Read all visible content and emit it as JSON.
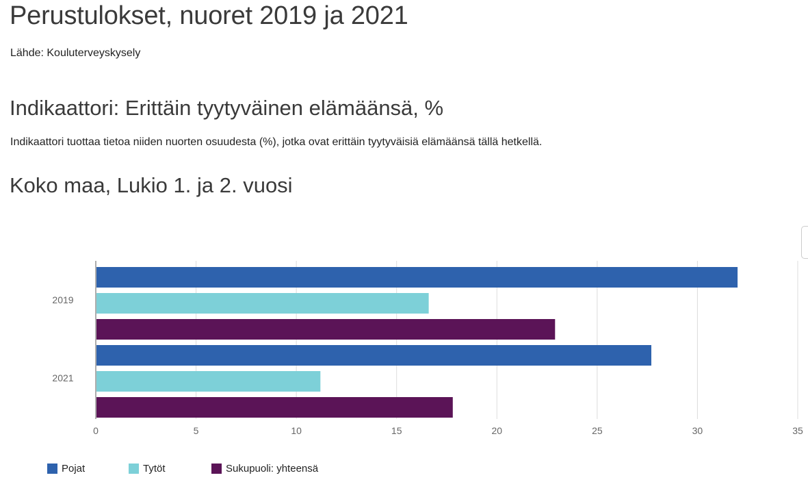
{
  "page": {
    "title": "Perustulokset, nuoret 2019 ja 2021",
    "source": "Lähde: Kouluterveyskysely",
    "indicator_title": "Indikaattori: Erittäin tyytyväinen elämäänsä, %",
    "indicator_description": "Indikaattori tuottaa tietoa niiden nuorten osuudesta (%), jotka ovat erittäin tyytyväisiä elämäänsä tällä hetkellä.",
    "chart_title": "Koko maa, Lukio 1. ja 2. vuosi"
  },
  "chart_data": {
    "type": "bar",
    "orientation": "horizontal",
    "title": "Koko maa, Lukio 1. ja 2. vuosi",
    "xlabel": "",
    "ylabel": "",
    "categories": [
      "2019",
      "2021"
    ],
    "series": [
      {
        "name": "Pojat",
        "color": "#2e62ad",
        "values": [
          32.0,
          27.7
        ]
      },
      {
        "name": "Tytöt",
        "color": "#7dd0d8",
        "values": [
          16.6,
          11.2
        ]
      },
      {
        "name": "Sukupuoli: yhteensä",
        "color": "#5b1457",
        "values": [
          22.9,
          17.8
        ]
      }
    ],
    "xlim": [
      0,
      35
    ],
    "ticks": [
      "0",
      "5",
      "10",
      "15",
      "20",
      "25",
      "30",
      "35"
    ],
    "grid": true,
    "legend_position": "bottom"
  }
}
